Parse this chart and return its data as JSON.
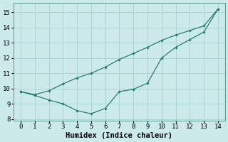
{
  "line1_x": [
    0,
    1,
    2,
    3,
    4,
    5,
    6,
    7,
    8,
    9,
    10,
    11,
    12,
    13,
    14
  ],
  "line1_y": [
    9.8,
    9.6,
    9.85,
    10.3,
    10.7,
    11.0,
    11.4,
    11.9,
    12.3,
    12.7,
    13.15,
    13.5,
    13.8,
    14.1,
    15.2
  ],
  "line2_x": [
    0,
    1,
    2,
    3,
    4,
    5,
    6,
    7,
    8,
    9,
    10,
    11,
    12,
    13,
    14
  ],
  "line2_y": [
    9.8,
    9.55,
    9.25,
    9.0,
    8.55,
    8.35,
    8.7,
    9.8,
    9.95,
    10.35,
    12.0,
    12.7,
    13.2,
    13.7,
    15.2
  ],
  "line_color": "#2a7d6e",
  "bg_color": "#cceaea",
  "grid_color": "#aad4d4",
  "xlabel": "Humidex (Indice chaleur)",
  "xlim": [
    -0.5,
    14.5
  ],
  "ylim": [
    7.9,
    15.6
  ],
  "xticks": [
    0,
    1,
    2,
    3,
    4,
    5,
    6,
    7,
    8,
    9,
    10,
    11,
    12,
    13,
    14
  ],
  "yticks": [
    8,
    9,
    10,
    11,
    12,
    13,
    14,
    15
  ],
  "xlabel_fontsize": 7.5,
  "tick_fontsize": 6.5,
  "linewidth": 0.9,
  "markersize": 2.2
}
